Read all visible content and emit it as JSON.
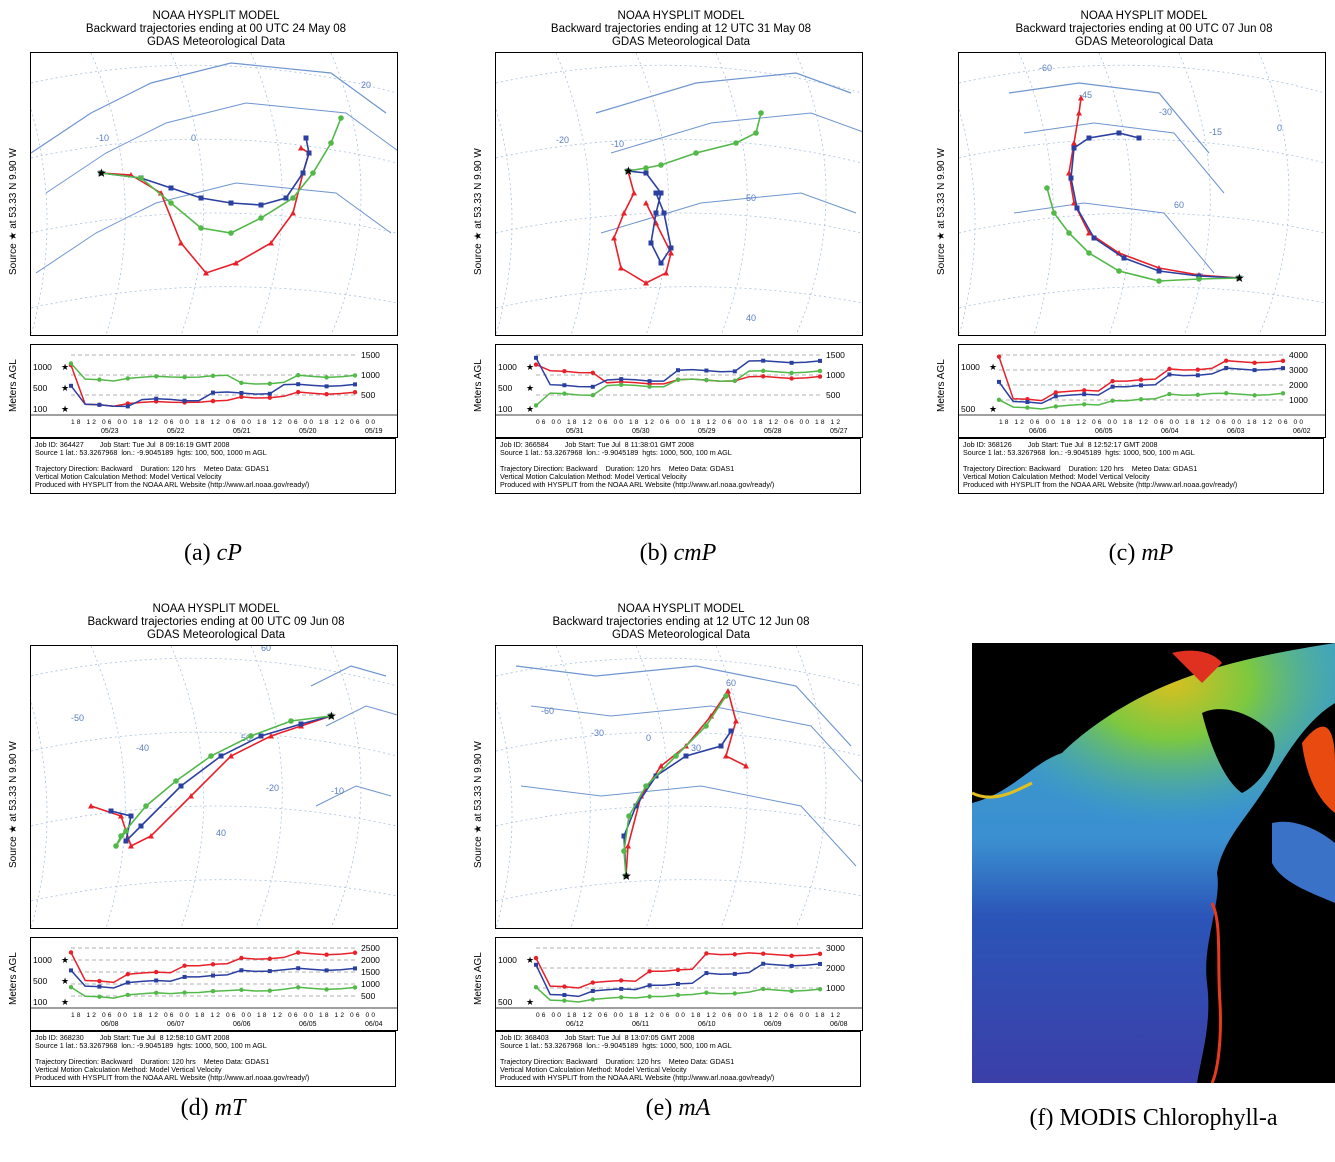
{
  "panels": [
    {
      "id": "a",
      "title": "NOAA HYSPLIT MODEL",
      "subtitle": "Backward trajectories ending at 00 UTC 24 May 08",
      "data": "GDAS Meteorological Data",
      "source_label": "Source ★ at 53.33 N 9.90 W",
      "agl_label": "Meters AGL",
      "right_ticks": [
        "1500",
        "1000",
        "500"
      ],
      "left_ticks": [
        "1000",
        "500",
        "100"
      ],
      "time_ticks": "18 12 06 00 18 12 06 00 18 12 06 00 18 12 06 00 18 12 06 00",
      "dates": [
        "05/23",
        "05/22",
        "05/21",
        "05/20",
        "05/19"
      ],
      "map_labels": [
        "-10",
        "0",
        "20"
      ],
      "foot": [
        "Job ID: 364427        Job Start: Tue Jul  8 09:16:19 GMT 2008",
        "Source 1 lat.: 53.3267968  lon.: -9.9045189  hgts: 100, 500, 1000 m AGL",
        "",
        "Trajectory Direction: Backward    Duration: 120 hrs    Meteo Data: GDAS1",
        "Vertical Motion Calculation Method: Model Vertical Velocity",
        "Produced with HYSPLIT from the NOAA ARL Website (http://www.arl.noaa.gov/ready/)"
      ],
      "caption_prefix": "(a) ",
      "caption_it": "cP"
    },
    {
      "id": "b",
      "title": "NOAA HYSPLIT MODEL",
      "subtitle": "Backward trajectories ending at 12 UTC 31 May 08",
      "data": "GDAS Meteorological Data",
      "source_label": "Source ★ at 53.33 N 9.90 W",
      "agl_label": "Meters AGL",
      "right_ticks": [
        "1500",
        "1000",
        "500"
      ],
      "left_ticks": [
        "1000",
        "500",
        "100"
      ],
      "time_ticks": "06 00 18 12 06 00 18 12 06 00 18 12 06 00 18 12 06 00 18 12",
      "dates": [
        "05/31",
        "05/30",
        "05/29",
        "05/28",
        "05/27"
      ],
      "map_labels": [
        "-20",
        "-10",
        "50",
        "40"
      ],
      "foot": [
        "Job ID: 366584        Job Start: Tue Jul  8 11:38:01 GMT 2008",
        "Source 1 lat.: 53.3267968  lon.: -9.9045189  hgts: 1000, 500, 100 m AGL",
        "",
        "Trajectory Direction: Backward    Duration: 120 hrs    Meteo Data: GDAS1",
        "Vertical Motion Calculation Method: Model Vertical Velocity",
        "Produced with HYSPLIT from the NOAA ARL Website (http://www.arl.noaa.gov/ready/)"
      ],
      "caption_prefix": "(b) ",
      "caption_it": "cmP"
    },
    {
      "id": "c",
      "title": "NOAA HYSPLIT MODEL",
      "subtitle": "Backward trajectories ending at 00 UTC 07 Jun 08",
      "data": "GDAS Meteorological Data",
      "source_label": "Source ★ at 53.33 N 9.90 W",
      "agl_label": "Meters AGL",
      "right_ticks": [
        "4000",
        "3000",
        "2000",
        "1000"
      ],
      "left_ticks": [
        "1000",
        "500"
      ],
      "time_ticks": "18 12 06 00 18 12 06 00 18 12 06 00 18 12 06 00 18 12 06 00",
      "dates": [
        "06/06",
        "06/05",
        "06/04",
        "06/03",
        "06/02"
      ],
      "map_labels": [
        "-60",
        "-45",
        "-30",
        "-15",
        "0",
        "60"
      ],
      "foot": [
        "Job ID: 368126        Job Start: Tue Jul  8 12:52:17 GMT 2008",
        "Source 1 lat.: 53.3267968  lon.: -9.9045189  hgts: 1000, 500, 100 m AGL",
        "",
        "Trajectory Direction: Backward    Duration: 120 hrs    Meteo Data: GDAS1",
        "Vertical Motion Calculation Method: Model Vertical Velocity",
        "Produced with HYSPLIT from the NOAA ARL Website (http://www.arl.noaa.gov/ready/)"
      ],
      "caption_prefix": "(c) ",
      "caption_it": "mP"
    },
    {
      "id": "d",
      "title": "NOAA HYSPLIT MODEL",
      "subtitle": "Backward trajectories ending at 00 UTC 09 Jun 08",
      "data": "GDAS Meteorological Data",
      "source_label": "Source ★ at 53.33 N 9.90 W",
      "agl_label": "Meters AGL",
      "right_ticks": [
        "2500",
        "2000",
        "1500",
        "1000",
        "500"
      ],
      "left_ticks": [
        "1000",
        "500",
        "100"
      ],
      "time_ticks": "18 12 06 00 18 12 06 00 18 12 06 00 18 12 06 00 18 12 06 00",
      "dates": [
        "06/08",
        "06/07",
        "06/06",
        "06/05",
        "06/04"
      ],
      "map_labels": [
        "60",
        "-50",
        "-40",
        "50",
        "-20",
        "-10",
        "40"
      ],
      "foot": [
        "Job ID: 368230        Job Start: Tue Jul  8 12:58:10 GMT 2008",
        "Source 1 lat.: 53.3267968  lon.: -9.9045189  hgts: 1000, 500, 100 m AGL",
        "",
        "Trajectory Direction: Backward    Duration: 120 hrs    Meteo Data: GDAS1",
        "Vertical Motion Calculation Method: Model Vertical Velocity",
        "Produced with HYSPLIT from the NOAA ARL Website (http://www.arl.noaa.gov/ready/)"
      ],
      "caption_prefix": "(d) ",
      "caption_it": "mT"
    },
    {
      "id": "e",
      "title": "NOAA HYSPLIT MODEL",
      "subtitle": "Backward trajectories ending at 12 UTC 12 Jun 08",
      "data": "GDAS Meteorological Data",
      "source_label": "Source ★ at 53.33 N 9.90 W",
      "agl_label": "Meters AGL",
      "right_ticks": [
        "3000",
        "2000",
        "1000"
      ],
      "left_ticks": [
        "1000",
        "500"
      ],
      "time_ticks": "06 00 18 12 06 00 18 12 06 00 18 12 06 00 18 12 06 00 18 12",
      "dates": [
        "06/12",
        "06/11",
        "06/10",
        "06/09",
        "06/08"
      ],
      "map_labels": [
        "-60",
        "-30",
        "0",
        "30",
        "60"
      ],
      "foot": [
        "Job ID: 368403        Job Start: Tue Jul  8 13:07:05 GMT 2008",
        "Source 1 lat.: 53.3267968  lon.: -9.9045189  hgts: 1000, 500, 100 m AGL",
        "",
        "Trajectory Direction: Backward    Duration: 120 hrs    Meteo Data: GDAS1",
        "Vertical Motion Calculation Method: Model Vertical Velocity",
        "Produced with HYSPLIT from the NOAA ARL Website (http://www.arl.noaa.gov/ready/)"
      ],
      "caption_prefix": "(e) ",
      "caption_it": "mA"
    }
  ],
  "modis_caption": "(f) MODIS Chlorophyll-a",
  "colors": {
    "red": "#e8202a",
    "blue": "#2a3fa0",
    "green": "#52b848",
    "coast": "#6f95cf",
    "grid": "#a8c0e0"
  }
}
